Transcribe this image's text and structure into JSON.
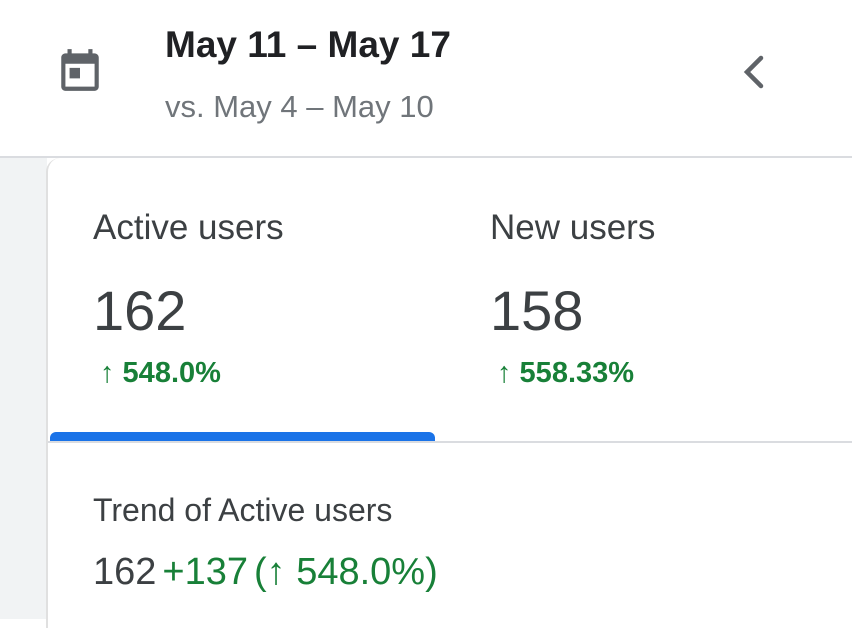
{
  "header": {
    "title": "May 11 – May 17",
    "subtitle": "vs. May 4 – May 10"
  },
  "metrics": [
    {
      "label": "Active users",
      "value": "162",
      "change": "↑ 548.0%"
    },
    {
      "label": "New users",
      "value": "158",
      "change": "↑ 558.33%"
    }
  ],
  "trend": {
    "title": "Trend of Active users",
    "value": "162",
    "delta": "+137",
    "percent": "(↑ 548.0%)"
  }
}
